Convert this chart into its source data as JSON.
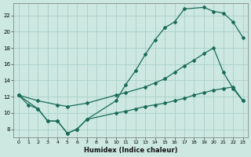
{
  "xlabel": "Humidex (Indice chaleur)",
  "bg_color": "#cce8e0",
  "grid_color": "#aacfc7",
  "line_color": "#1a6b5a",
  "xlim": [
    -0.5,
    23.5
  ],
  "ylim": [
    7,
    23.5
  ],
  "yticks": [
    8,
    10,
    12,
    14,
    16,
    18,
    20,
    22
  ],
  "xticks": [
    0,
    1,
    2,
    3,
    4,
    5,
    6,
    7,
    8,
    9,
    10,
    11,
    12,
    13,
    14,
    15,
    16,
    17,
    18,
    19,
    20,
    21,
    22,
    23
  ],
  "line1_x": [
    0,
    1,
    2,
    3,
    4,
    5,
    6,
    7,
    10,
    11,
    12,
    13,
    14,
    15,
    16,
    17,
    19,
    20,
    21,
    22,
    23
  ],
  "line1_y": [
    12.2,
    11.0,
    10.5,
    9.0,
    9.0,
    7.5,
    8.0,
    9.2,
    11.5,
    13.5,
    15.2,
    17.2,
    19.0,
    20.5,
    21.2,
    22.8,
    23.0,
    22.5,
    22.3,
    21.2,
    19.3
  ],
  "line2_x": [
    0,
    2,
    4,
    5,
    7,
    10,
    11,
    13,
    14,
    15,
    16,
    17,
    18,
    19,
    20,
    21,
    22,
    23
  ],
  "line2_y": [
    12.2,
    11.5,
    11.0,
    10.8,
    11.2,
    12.2,
    12.5,
    13.2,
    13.7,
    14.2,
    15.0,
    15.8,
    16.5,
    17.3,
    18.0,
    15.0,
    13.0,
    11.5
  ],
  "line3_x": [
    0,
    2,
    3,
    4,
    5,
    6,
    7,
    10,
    11,
    12,
    13,
    14,
    15,
    16,
    17,
    18,
    19,
    20,
    21,
    22,
    23
  ],
  "line3_y": [
    12.2,
    10.5,
    9.0,
    9.0,
    7.5,
    8.0,
    9.2,
    10.0,
    10.2,
    10.5,
    10.8,
    11.0,
    11.2,
    11.5,
    11.8,
    12.2,
    12.5,
    12.8,
    13.0,
    13.2,
    11.5
  ]
}
